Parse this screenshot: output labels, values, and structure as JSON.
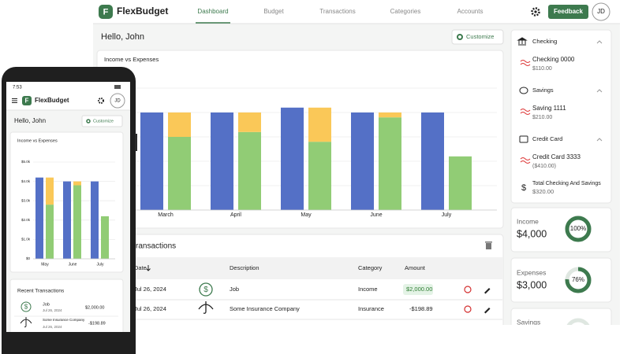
{
  "desktop": {
    "brand": "FlexBudget",
    "nav": [
      "Dashboard",
      "Budget",
      "Transactions",
      "Categories",
      "Accounts"
    ],
    "feedback": "Feedback",
    "avatar": "JD",
    "greeting": "Hello, John",
    "customize": "Customize",
    "transactions_title": "Recent Transactions",
    "table": {
      "headers": [
        "Date",
        "Description",
        "Category",
        "Amount"
      ],
      "rows": [
        [
          "Jul 26, 2024",
          "Job",
          "Income",
          "$2,000.00"
        ],
        [
          "Jul 26, 2024",
          "Some Insurance Company",
          "Insurance",
          "-$198.89"
        ]
      ]
    },
    "accounts": [
      {
        "group": "Checking",
        "name": "Checking 0000",
        "balance": "$110.00"
      },
      {
        "group": "Savings",
        "name": "Saving 1111",
        "balance": "$210.00"
      },
      {
        "group": "Credit Card",
        "name": "Credit Card 3333",
        "balance": "($410.00)"
      }
    ],
    "total": {
      "label": "Total Checking And Savings",
      "value": "$320.00"
    },
    "summary": [
      {
        "label": "Income",
        "amount": "$4,000",
        "pct": {
          "value": 100,
          "label": "100%"
        }
      },
      {
        "label": "Expenses",
        "amount": "$3,000",
        "pct": {
          "value": 76,
          "label": "76%"
        }
      },
      {
        "label": "Savings"
      }
    ]
  },
  "phone": {
    "time": "7:53",
    "brand": "FlexBudget",
    "avatar": "JD",
    "greeting": "Hello, John",
    "customize": "Customize",
    "transactions_title": "Recent Transactions",
    "rows": [
      {
        "description": "Job",
        "date": "Jul 26, 2024",
        "amount": "$2,000.00"
      },
      {
        "description": "Some Insurance Company",
        "date": "Jul 26, 2024",
        "amount": "-$198.89"
      }
    ]
  },
  "chart_data": [
    {
      "type": "bar",
      "title": "Income vs Expenses",
      "categories": [
        "March",
        "April",
        "May",
        "June",
        "July"
      ],
      "series": [
        {
          "color": "#5470c6",
          "values": [
            4000,
            4000,
            4200,
            4000,
            4000
          ]
        },
        {
          "color": "#91cc75",
          "values": [
            3000,
            3200,
            2800,
            3800,
            2200
          ]
        },
        {
          "color": "#fac858",
          "values": [
            1000,
            800,
            1400,
            200,
            0
          ]
        }
      ],
      "ylim": [
        0,
        5000
      ],
      "grid": true
    },
    {
      "type": "bar",
      "title": "Income vs Expenses",
      "categories": [
        "May",
        "June",
        "July"
      ],
      "series": [
        {
          "color": "#5470c6",
          "values": [
            4200,
            4000,
            4000
          ]
        },
        {
          "color": "#91cc75",
          "values": [
            2800,
            3800,
            2200
          ]
        },
        {
          "color": "#fac858",
          "values": [
            1400,
            200,
            0
          ]
        }
      ],
      "ylim": [
        0,
        5000
      ],
      "yticks": [
        {
          "value": 0,
          "label": "$0"
        },
        {
          "value": 1000,
          "label": "$1.0k"
        },
        {
          "value": 2000,
          "label": "$2.0k"
        },
        {
          "value": 3000,
          "label": "$3.0k"
        },
        {
          "value": 4000,
          "label": "$4.0k"
        },
        {
          "value": 5000,
          "label": "$5.0k"
        }
      ],
      "grid": true
    }
  ]
}
